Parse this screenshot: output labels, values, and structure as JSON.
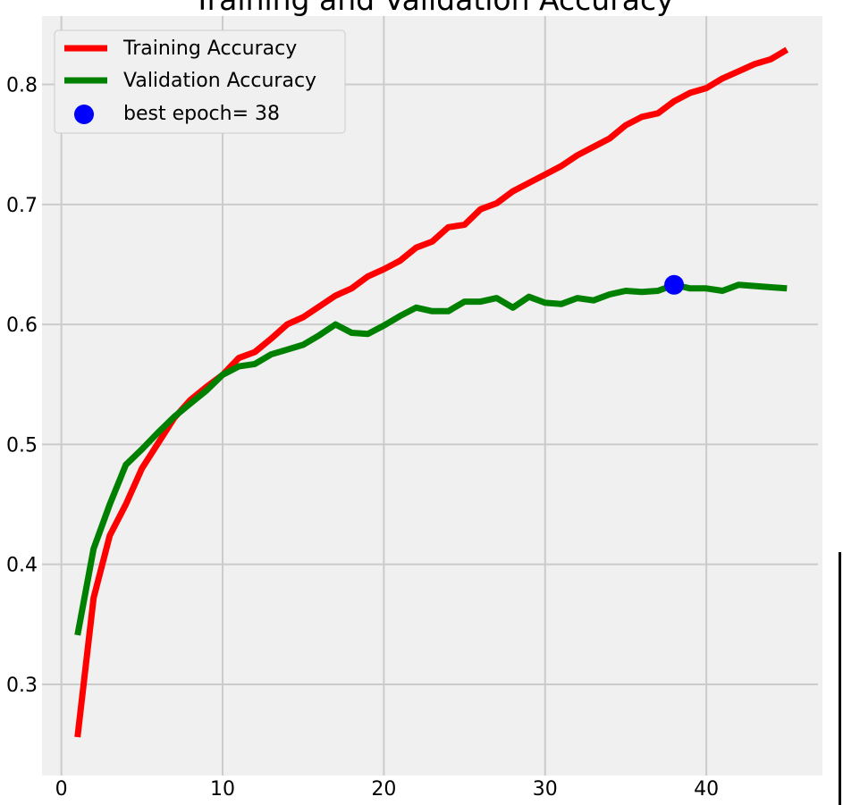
{
  "chart_data": {
    "type": "line",
    "title": "Training and Validation Accuracy",
    "xlabel": "",
    "ylabel": "",
    "xlim": [
      -1.2,
      47.2
    ],
    "ylim": [
      0.224,
      0.857
    ],
    "xticks": [
      0,
      10,
      20,
      30,
      40
    ],
    "yticks": [
      0.3,
      0.4,
      0.5,
      0.6,
      0.7,
      0.8
    ],
    "grid": true,
    "legend_position": "top-left",
    "background": "#f0f0f0",
    "series": [
      {
        "name": "Training Accuracy",
        "color": "#ff0000",
        "x": [
          1,
          2,
          3,
          4,
          5,
          6,
          7,
          8,
          9,
          10,
          11,
          12,
          13,
          14,
          15,
          16,
          17,
          18,
          19,
          20,
          21,
          22,
          23,
          24,
          25,
          26,
          27,
          28,
          29,
          30,
          31,
          32,
          33,
          34,
          35,
          36,
          37,
          38,
          39,
          40,
          41,
          42,
          43,
          44,
          45
        ],
        "y": [
          0.256,
          0.372,
          0.424,
          0.45,
          0.48,
          0.501,
          0.522,
          0.537,
          0.548,
          0.558,
          0.572,
          0.577,
          0.588,
          0.6,
          0.606,
          0.615,
          0.624,
          0.63,
          0.64,
          0.646,
          0.653,
          0.664,
          0.669,
          0.681,
          0.683,
          0.696,
          0.701,
          0.711,
          0.718,
          0.725,
          0.732,
          0.741,
          0.748,
          0.755,
          0.766,
          0.773,
          0.776,
          0.786,
          0.793,
          0.797,
          0.805,
          0.811,
          0.817,
          0.821,
          0.829
        ]
      },
      {
        "name": "Validation Accuracy",
        "color": "#008000",
        "x": [
          1,
          2,
          3,
          4,
          5,
          6,
          7,
          8,
          9,
          10,
          11,
          12,
          13,
          14,
          15,
          16,
          17,
          18,
          19,
          20,
          21,
          22,
          23,
          24,
          25,
          26,
          27,
          28,
          29,
          30,
          31,
          32,
          33,
          34,
          35,
          36,
          37,
          38,
          39,
          40,
          41,
          42,
          43,
          44,
          45
        ],
        "y": [
          0.341,
          0.413,
          0.45,
          0.483,
          0.496,
          0.51,
          0.523,
          0.534,
          0.545,
          0.558,
          0.565,
          0.567,
          0.575,
          0.579,
          0.583,
          0.591,
          0.6,
          0.593,
          0.592,
          0.599,
          0.607,
          0.614,
          0.611,
          0.611,
          0.619,
          0.619,
          0.622,
          0.614,
          0.623,
          0.618,
          0.617,
          0.622,
          0.62,
          0.625,
          0.628,
          0.627,
          0.628,
          0.633,
          0.63,
          0.63,
          0.628,
          0.633,
          0.632,
          0.631,
          0.63
        ]
      }
    ],
    "marker": {
      "name": "best epoch= 38",
      "color": "#0000ff",
      "x": 38,
      "y": 0.633
    }
  }
}
